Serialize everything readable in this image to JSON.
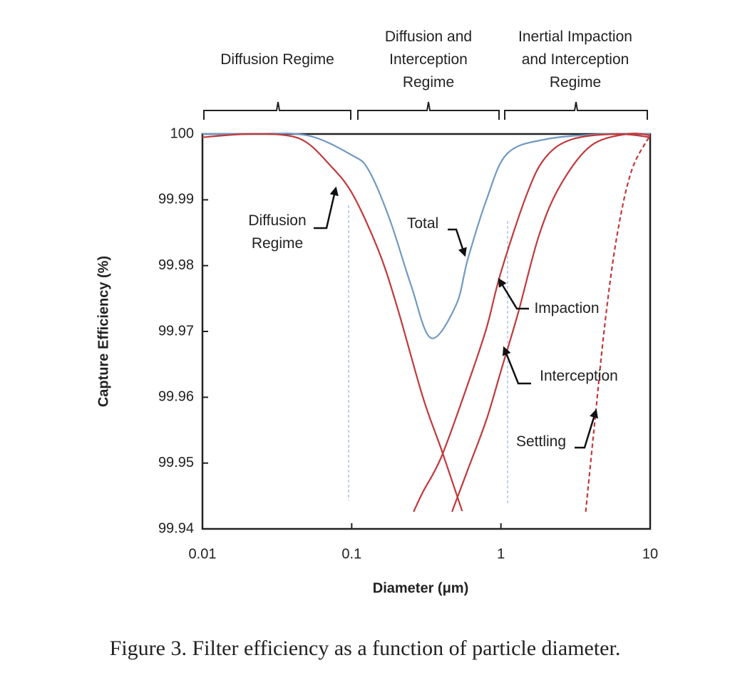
{
  "chart_data": {
    "type": "line",
    "caption": "Figure 3.  Filter efficiency as a function of particle diameter.",
    "xlabel": "Diameter (μm)",
    "ylabel": "Capture Efficiency (%)",
    "regimes": [
      "Diffusion Regime",
      "Diffusion and Interception Regime",
      "Inertial Impaction and Interception Regime"
    ],
    "xlim": [
      0.01,
      10
    ],
    "xticks": [
      0.01,
      0.1,
      1,
      10
    ],
    "xscale": "log",
    "ylim": [
      99.94,
      100
    ],
    "yticks": [
      99.94,
      99.95,
      99.96,
      99.97,
      99.98,
      99.99,
      100
    ],
    "series": [
      {
        "name": "Total",
        "color": "#7199c0",
        "style": "solid",
        "x": [
          0.01,
          0.02,
          0.05,
          0.1,
          0.13,
          0.18,
          0.25,
          0.34,
          0.5,
          0.6,
          0.8,
          1.1,
          2,
          5,
          10
        ],
        "values": [
          100,
          100,
          99.9998,
          99.9968,
          99.9945,
          99.987,
          99.977,
          99.969,
          99.974,
          99.981,
          99.99,
          99.997,
          99.9992,
          100,
          100
        ]
      },
      {
        "name": "Diffusion Regime",
        "color": "#c0393b",
        "style": "solid",
        "x": [
          0.01,
          0.02,
          0.036,
          0.05,
          0.07,
          0.1,
          0.15,
          0.2,
          0.3,
          0.4,
          0.55
        ],
        "values": [
          99.9995,
          100,
          99.9998,
          99.9987,
          99.9955,
          99.9911,
          99.9825,
          99.974,
          99.96,
          99.952,
          99.9427
        ]
      },
      {
        "name": "Impaction",
        "color": "#c0393b",
        "style": "solid",
        "x": [
          0.26,
          0.3,
          0.4,
          0.6,
          0.8,
          1,
          1.5,
          2,
          3,
          6,
          10
        ],
        "values": [
          99.9426,
          99.9456,
          99.951,
          99.962,
          99.9705,
          99.979,
          99.991,
          99.9965,
          99.9992,
          100,
          99.9995
        ]
      },
      {
        "name": "Interception",
        "color": "#c0393b",
        "style": "solid",
        "x": [
          0.47,
          0.6,
          0.8,
          1,
          1.3,
          1.8,
          2.5,
          4,
          7,
          10
        ],
        "values": [
          99.9426,
          99.949,
          99.9566,
          99.964,
          99.9727,
          99.9846,
          99.9922,
          99.9982,
          100,
          99.9998
        ]
      },
      {
        "name": "Settling",
        "color": "#c0393b",
        "style": "dashed",
        "x": [
          3.7,
          4.2,
          5,
          6,
          7.5,
          10
        ],
        "values": [
          99.9426,
          99.955,
          99.9716,
          99.9846,
          99.9944,
          99.9998
        ]
      }
    ]
  }
}
